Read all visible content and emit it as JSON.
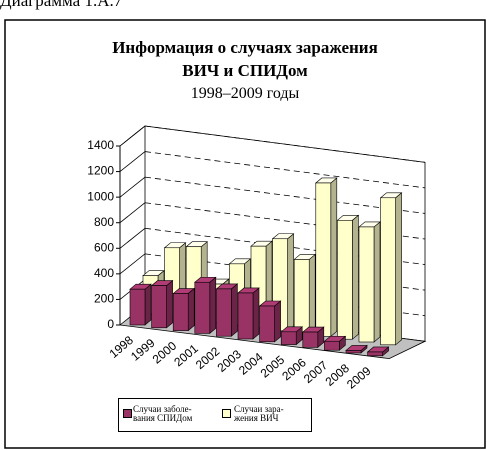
{
  "caption": "Диаграмма 1.А.7",
  "chart_data": {
    "type": "bar3d",
    "title": "Информация о случаях заражения ВИЧ и СПИДом",
    "subtitle": "1998–2009 годы",
    "categories": [
      "1998",
      "1999",
      "2000",
      "2001",
      "2002",
      "2003",
      "2004",
      "2005",
      "2006",
      "2007",
      "2008",
      "2009"
    ],
    "series": [
      {
        "name": "Случаи заболе-\nвания СПИДом",
        "color": "#993366",
        "values": [
          280,
          330,
          290,
          400,
          370,
          360,
          280,
          100,
          120,
          70,
          20,
          30
        ]
      },
      {
        "name": "Случаи зара-\nжения ВИЧ",
        "color": "#ffffcc",
        "values": [
          300,
          540,
          570,
          300,
          480,
          640,
          720,
          580,
          1200,
          930,
          900,
          1150
        ]
      }
    ],
    "ylim": [
      0,
      1400
    ],
    "yticks": [
      0,
      200,
      400,
      600,
      800,
      1000,
      1200,
      1400
    ],
    "grid": true
  }
}
